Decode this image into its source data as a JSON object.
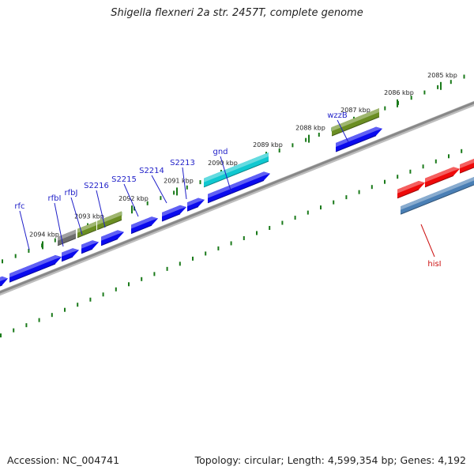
{
  "title": "Shigella flexneri 2a str. 2457T, complete genome",
  "footer": {
    "accession": "Accession: NC_004741",
    "topology": "Topology: circular; Length: 4,599,354 bp; Genes: 4,192"
  },
  "colors": {
    "backbone": "#888888",
    "tick": "#1a7a1a",
    "forward_label": "#1f1fc8",
    "reverse_label": "#cc1111",
    "blue": "#0a0aee",
    "olive": "#6b8e23",
    "gray": "#6e6e6e",
    "cyan": "#10c8d0",
    "red": "#ee0a0a",
    "steelblue": "#4a7fb5"
  },
  "ruler": [
    {
      "label": "2094 kbp"
    },
    {
      "label": "2093 kbp"
    },
    {
      "label": "2092 kbp"
    },
    {
      "label": "2091 kbp"
    },
    {
      "label": "2090 kbp"
    },
    {
      "label": "2089 kbp"
    },
    {
      "label": "2088 kbp"
    },
    {
      "label": "2087 kbp"
    },
    {
      "label": "2086 kbp"
    },
    {
      "label": "2085 kbp"
    }
  ],
  "gene_labels": [
    {
      "name": "rfc",
      "strand": "forward"
    },
    {
      "name": "rfbI",
      "strand": "forward"
    },
    {
      "name": "rfbJ",
      "strand": "forward"
    },
    {
      "name": "S2216",
      "strand": "forward"
    },
    {
      "name": "S2215",
      "strand": "forward"
    },
    {
      "name": "S2214",
      "strand": "forward"
    },
    {
      "name": "S2213",
      "strand": "forward"
    },
    {
      "name": "gnd",
      "strand": "forward"
    },
    {
      "name": "wzzB",
      "strand": "forward"
    },
    {
      "name": "hisI",
      "strand": "reverse"
    }
  ],
  "features": [
    {
      "color": "blue",
      "track": "inner"
    },
    {
      "color": "blue",
      "track": "inner"
    },
    {
      "color": "blue",
      "track": "inner"
    },
    {
      "color": "blue",
      "track": "inner"
    },
    {
      "color": "blue",
      "track": "inner"
    },
    {
      "color": "blue",
      "track": "inner"
    },
    {
      "color": "blue",
      "track": "inner"
    },
    {
      "color": "blue",
      "track": "inner"
    },
    {
      "color": "blue",
      "track": "inner"
    },
    {
      "color": "blue",
      "track": "inner"
    },
    {
      "color": "gray",
      "track": "outer"
    },
    {
      "color": "olive",
      "track": "outer"
    },
    {
      "color": "olive",
      "track": "outer"
    },
    {
      "color": "cyan",
      "track": "outer"
    },
    {
      "color": "olive",
      "track": "outer"
    },
    {
      "color": "red",
      "track": "outer"
    },
    {
      "color": "red",
      "track": "outer"
    },
    {
      "color": "red",
      "track": "outer"
    },
    {
      "color": "steelblue",
      "track": "reverse"
    },
    {
      "color": "steelblue",
      "track": "reverse"
    }
  ]
}
